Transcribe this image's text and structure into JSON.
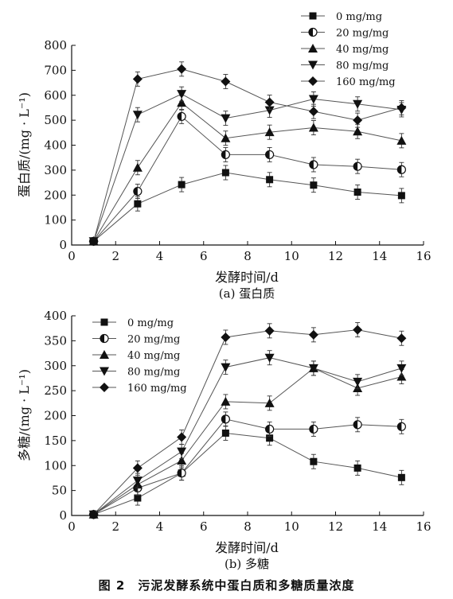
{
  "figure": {
    "caption": "图 2　污泥发酵系统中蛋白质和多糖质量浓度"
  },
  "chart_data": [
    {
      "type": "line",
      "sub_caption": "(a) 蛋白质",
      "xlabel": "发酵时间/d",
      "ylabel": "蛋白质/(mg · L⁻¹)",
      "xlim": [
        0,
        16
      ],
      "ylim": [
        0,
        800
      ],
      "xticks": [
        0,
        2,
        4,
        6,
        8,
        10,
        12,
        14,
        16
      ],
      "yticks": [
        0,
        100,
        200,
        300,
        400,
        500,
        600,
        700,
        800
      ],
      "legend_position": "top-right",
      "x": [
        1,
        3,
        5,
        7,
        9,
        11,
        13,
        15
      ],
      "series": [
        {
          "name": "0 mg/mg",
          "marker": "square",
          "values": [
            15,
            165,
            242,
            290,
            262,
            240,
            212,
            198
          ]
        },
        {
          "name": "20 mg/mg",
          "marker": "half-circle",
          "values": [
            15,
            215,
            515,
            362,
            362,
            322,
            315,
            302
          ]
        },
        {
          "name": "40 mg/mg",
          "marker": "triangle-up",
          "values": [
            15,
            310,
            570,
            428,
            452,
            470,
            455,
            418
          ]
        },
        {
          "name": "80 mg/mg",
          "marker": "triangle-down",
          "values": [
            15,
            522,
            605,
            508,
            540,
            585,
            565,
            542
          ]
        },
        {
          "name": "160 mg/mg",
          "marker": "diamond",
          "values": [
            15,
            665,
            705,
            655,
            572,
            535,
            500,
            550
          ]
        }
      ]
    },
    {
      "type": "line",
      "sub_caption": "(b) 多糖",
      "xlabel": "发酵时间/d",
      "ylabel": "多糖/(mg · L⁻¹)",
      "xlim": [
        0,
        16
      ],
      "ylim": [
        0,
        400
      ],
      "xticks": [
        0,
        2,
        4,
        6,
        8,
        10,
        12,
        14,
        16
      ],
      "yticks": [
        0,
        50,
        100,
        150,
        200,
        250,
        300,
        350,
        400
      ],
      "legend_position": "top-left",
      "x": [
        1,
        3,
        5,
        7,
        9,
        11,
        13,
        15
      ],
      "series": [
        {
          "name": "0 mg/mg",
          "marker": "square",
          "values": [
            2,
            35,
            85,
            165,
            155,
            108,
            95,
            76
          ]
        },
        {
          "name": "20 mg/mg",
          "marker": "half-circle",
          "values": [
            2,
            55,
            85,
            193,
            173,
            173,
            182,
            178
          ]
        },
        {
          "name": "40 mg/mg",
          "marker": "triangle-up",
          "values": [
            2,
            62,
            110,
            228,
            225,
            295,
            255,
            278
          ]
        },
        {
          "name": "80 mg/mg",
          "marker": "triangle-down",
          "values": [
            2,
            70,
            128,
            297,
            316,
            295,
            268,
            295
          ]
        },
        {
          "name": "160 mg/mg",
          "marker": "diamond",
          "values": [
            2,
            95,
            157,
            357,
            370,
            362,
            372,
            355
          ]
        }
      ]
    }
  ]
}
